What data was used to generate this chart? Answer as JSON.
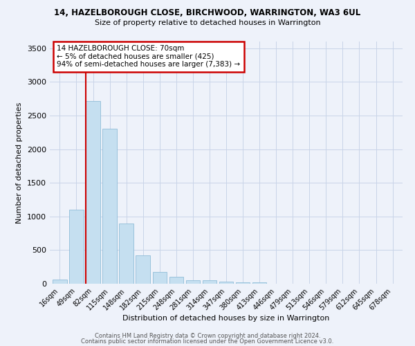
{
  "title1": "14, HAZELBOROUGH CLOSE, BIRCHWOOD, WARRINGTON, WA3 6UL",
  "title2": "Size of property relative to detached houses in Warrington",
  "xlabel": "Distribution of detached houses by size in Warrington",
  "ylabel": "Number of detached properties",
  "categories": [
    "16sqm",
    "49sqm",
    "82sqm",
    "115sqm",
    "148sqm",
    "182sqm",
    "215sqm",
    "248sqm",
    "281sqm",
    "314sqm",
    "347sqm",
    "380sqm",
    "413sqm",
    "446sqm",
    "479sqm",
    "513sqm",
    "546sqm",
    "579sqm",
    "612sqm",
    "645sqm",
    "678sqm"
  ],
  "values": [
    60,
    1100,
    2720,
    2300,
    890,
    420,
    180,
    105,
    55,
    50,
    30,
    25,
    22,
    5,
    2,
    2,
    1,
    0,
    0,
    0,
    0
  ],
  "bar_color": "#c5dff0",
  "bar_edge_color": "#90bcd8",
  "redline_color": "#cc0000",
  "annotation_text": "14 HAZELBOROUGH CLOSE: 70sqm\n← 5% of detached houses are smaller (425)\n94% of semi-detached houses are larger (7,383) →",
  "annotation_box_color": "#ffffff",
  "annotation_box_edgecolor": "#cc0000",
  "ylim": [
    0,
    3600
  ],
  "yticks": [
    0,
    500,
    1000,
    1500,
    2000,
    2500,
    3000,
    3500
  ],
  "grid_color": "#c8d4e8",
  "background_color": "#eef2fa",
  "footer1": "Contains HM Land Registry data © Crown copyright and database right 2024.",
  "footer2": "Contains public sector information licensed under the Open Government Licence v3.0."
}
